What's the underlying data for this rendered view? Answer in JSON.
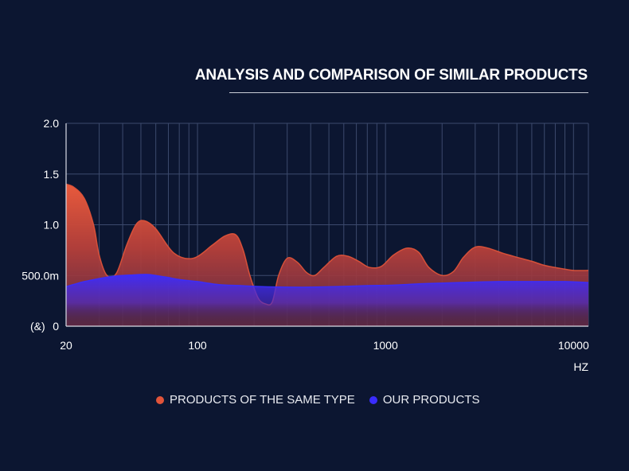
{
  "chart_data": {
    "type": "area",
    "title": "ANALYSIS AND COMPARISON OF SIMILAR PRODUCTS",
    "xlabel": "HZ",
    "ylabel": "(&)",
    "x_scale": "log",
    "xlim": [
      20,
      12000
    ],
    "ylim": [
      0,
      2.0
    ],
    "x_ticks": [
      {
        "value": 20,
        "label": "20"
      },
      {
        "value": 100,
        "label": "100"
      },
      {
        "value": 1000,
        "label": "1000"
      },
      {
        "value": 10000,
        "label": "10000"
      }
    ],
    "y_ticks": [
      {
        "value": 0,
        "label": "0"
      },
      {
        "value": 0.5,
        "label": "500.0m"
      },
      {
        "value": 1.0,
        "label": "1.0"
      },
      {
        "value": 1.5,
        "label": "1.5"
      },
      {
        "value": 2.0,
        "label": "2.0"
      }
    ],
    "grid": true,
    "legend_position": "bottom-center",
    "series": [
      {
        "name": "PRODUCTS OF THE SAME TYPE",
        "color": "#e2543a",
        "x": [
          20,
          22,
          25,
          28,
          30,
          33,
          37,
          42,
          47,
          52,
          60,
          75,
          95,
          120,
          140,
          160,
          175,
          190,
          210,
          230,
          250,
          270,
          300,
          340,
          380,
          420,
          470,
          550,
          630,
          720,
          820,
          950,
          1100,
          1300,
          1500,
          1700,
          2000,
          2300,
          2600,
          3000,
          3500,
          4200,
          5000,
          6000,
          7000,
          8500,
          10000,
          12000
        ],
        "values": [
          1.4,
          1.37,
          1.26,
          1.0,
          0.7,
          0.5,
          0.52,
          0.8,
          1.0,
          1.04,
          0.96,
          0.72,
          0.67,
          0.8,
          0.89,
          0.9,
          0.75,
          0.5,
          0.28,
          0.22,
          0.24,
          0.5,
          0.67,
          0.63,
          0.53,
          0.5,
          0.58,
          0.69,
          0.69,
          0.64,
          0.58,
          0.59,
          0.7,
          0.77,
          0.73,
          0.58,
          0.5,
          0.54,
          0.68,
          0.78,
          0.77,
          0.72,
          0.68,
          0.64,
          0.6,
          0.57,
          0.55,
          0.55
        ]
      },
      {
        "name": "OUR PRODUCTS",
        "color": "#3a2cff",
        "x": [
          20,
          25,
          30,
          35,
          40,
          45,
          50,
          55,
          60,
          70,
          80,
          100,
          130,
          170,
          220,
          300,
          400,
          550,
          800,
          1100,
          1600,
          2500,
          4000,
          6000,
          9000,
          12000
        ],
        "values": [
          0.39,
          0.44,
          0.47,
          0.49,
          0.5,
          0.505,
          0.51,
          0.51,
          0.5,
          0.48,
          0.46,
          0.44,
          0.41,
          0.4,
          0.39,
          0.385,
          0.385,
          0.39,
          0.4,
          0.405,
          0.42,
          0.43,
          0.44,
          0.44,
          0.44,
          0.43
        ]
      }
    ]
  }
}
